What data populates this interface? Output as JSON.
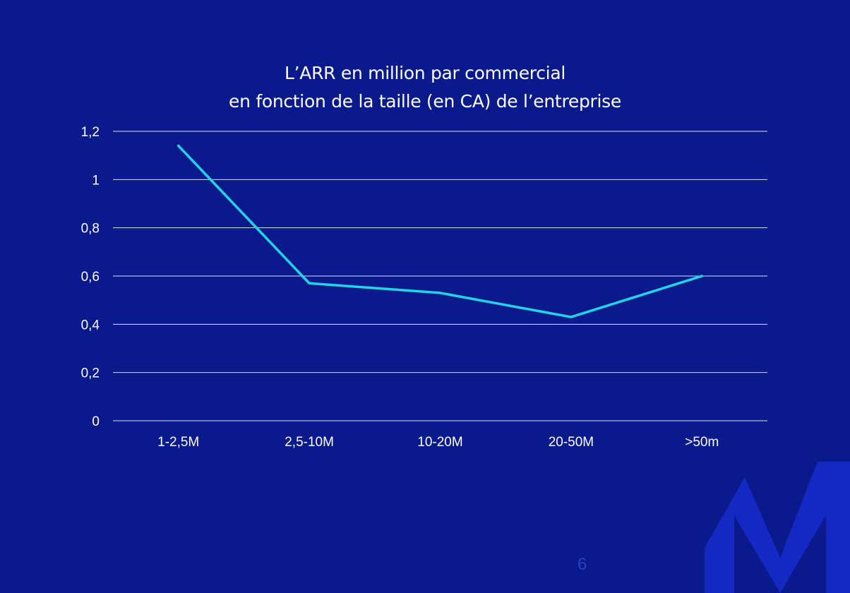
{
  "colors": {
    "background": "#0a1a8c",
    "line": "#1fd6e6",
    "grid": "#ffffff",
    "logo": "#1428c4",
    "page_number": "#2a3fc7"
  },
  "logo": {
    "icon": "m-logo-icon"
  },
  "page_number": "6",
  "chart_data": {
    "type": "line",
    "title_lines": [
      "L’ARR en million par commercial",
      "en fonction de la taille (en CA) de l’entreprise"
    ],
    "categories": [
      "1-2,5M",
      "2,5-10M",
      "10-20M",
      "20-50M",
      ">50m"
    ],
    "series": [
      {
        "values": [
          1.14,
          0.57,
          0.53,
          0.43,
          0.6
        ]
      }
    ],
    "yticks": [
      {
        "value": 1.2,
        "label": "1,2"
      },
      {
        "value": 1.0,
        "label": "1"
      },
      {
        "value": 0.8,
        "label": "0,8"
      },
      {
        "value": 0.6,
        "label": "0,6"
      },
      {
        "value": 0.4,
        "label": "0,4"
      },
      {
        "value": 0.2,
        "label": "0,2"
      },
      {
        "value": 0.0,
        "label": "0"
      }
    ],
    "ylim": [
      0,
      1.2
    ],
    "grid": true,
    "legend": "none"
  }
}
